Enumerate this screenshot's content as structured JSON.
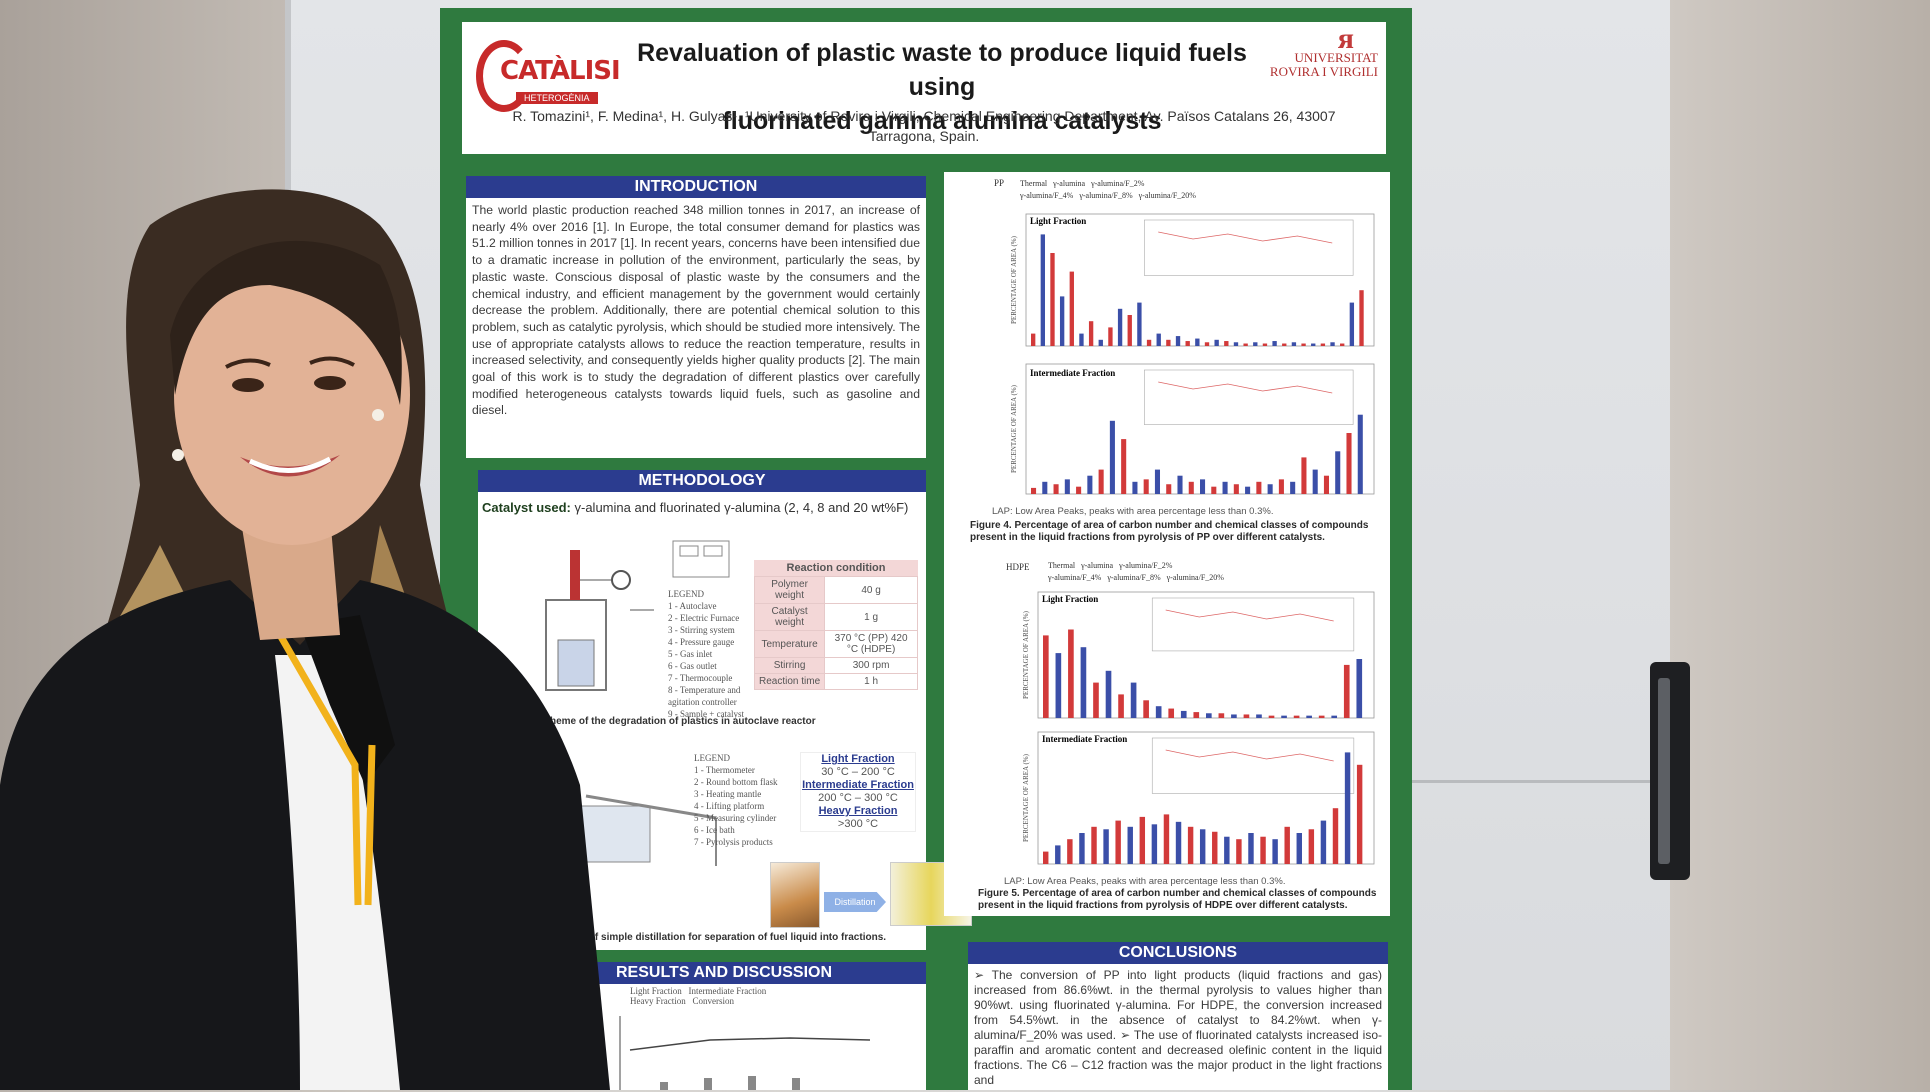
{
  "poster": {
    "title_line1": "Revaluation of plastic waste to produce liquid fuels using",
    "title_line2": "fluorinated gamma alumina catalysts",
    "authors_line1": "R. Tomazini¹, F. Medina¹, H. Gulyas¹. ¹University of Rovira i Virgili, Chemical Engineering Department, Av. Països Catalans 26, 43007",
    "authors_line2": "Tarragona, Spain.",
    "logo_left_word": "CATÀLISI",
    "logo_left_sub": "HETEROGÈNIA",
    "logo_right_line1": "UNIVERSITAT",
    "logo_right_line2": "ROVIRA I VIRGILI",
    "introduction": {
      "heading": "INTRODUCTION",
      "text": "The world plastic production reached 348 million tonnes in 2017, an increase of nearly 4% over 2016 [1]. In Europe, the total consumer demand for plastics was 51.2 million tonnes in 2017 [1]. In recent years, concerns have been intensified due to a dramatic increase in pollution of the environment, particularly the seas, by plastic waste. Conscious disposal of plastic waste by the consumers and the chemical industry, and efficient management by the government would certainly decrease the problem. Additionally, there are potential chemical solution to this problem, such as catalytic pyrolysis, which should be studied more intensively. The use of appropriate catalysts allows to reduce the reaction temperature, results in increased selectivity, and consequently yields higher quality products [2]. The main goal of this work is to study the degradation of different plastics over carefully modified heterogeneous catalysts towards liquid fuels, such as gasoline and diesel."
    },
    "methodology": {
      "heading": "METHODOLOGY",
      "catalyst_label": "Catalyst used:",
      "catalyst_text": "γ-alumina and fluorinated γ-alumina (2, 4, 8 and 20 wt%F)",
      "reaction_title": "Reaction condition",
      "reaction_rows": [
        {
          "k": "Polymer weight",
          "v": "40 g"
        },
        {
          "k": "Catalyst weight",
          "v": "1 g"
        },
        {
          "k": "Temperature",
          "v": "370 °C (PP) 420 °C (HDPE)"
        },
        {
          "k": "Stirring",
          "v": "300 rpm"
        },
        {
          "k": "Reaction time",
          "v": "1 h"
        }
      ],
      "legend1_title": "LEGEND",
      "legend1": [
        "1 - Autoclave",
        "2 - Electric Furnace",
        "3 - Stirring system",
        "4 - Pressure gauge",
        "5 - Gas inlet",
        "6 - Gas outlet",
        "7 - Thermocouple",
        "8 - Temperature and",
        "agitation controller",
        "9 - Sample + catalyst"
      ],
      "caption1": "heme of the degradation of plastics in autoclave reactor",
      "legend2_title": "LEGEND",
      "legend2": [
        "1 - Thermometer",
        "2 - Round bottom flask",
        "3 - Heating mantle",
        "4 - Lifting platform",
        "5 - Measuring cylinder",
        "6 - Ice bath",
        "7 - Pyrolysis products"
      ],
      "fractions": [
        {
          "t": "Light Fraction",
          "r": "30 °C – 200 °C"
        },
        {
          "t": "Intermediate Fraction",
          "r": "200 °C – 300 °C"
        },
        {
          "t": "Heavy Fraction",
          "r": ">300 °C"
        }
      ],
      "distillation_label": "Distillation",
      "caption2": "eme of simple distillation for separation of fuel liquid into fractions."
    },
    "results": {
      "heading": "RESULTS AND DISCUSSION",
      "legend": [
        "Light Fraction",
        "Intermediate Fraction",
        "Heavy Fraction",
        "Conversion"
      ]
    },
    "conclusions": {
      "heading": "CONCLUSIONS",
      "text": "➢ The conversion of PP into light products (liquid fractions and gas) increased from 86.6%wt. in the thermal pyrolysis to values higher than 90%wt. using fluorinated γ-alumina. For HDPE, the conversion increased from 54.5%wt. in the absence of catalyst to 84.2%wt. when γ-alumina/F_20% was used. ➢ The use of fluorinated catalysts increased iso-paraffin and aromatic content and decreased olefinic content in the liquid fractions. The C6 – C12 fraction was the major product in the light fractions and"
    },
    "figures": {
      "pp_label": "PP",
      "hdpe_label": "HDPE",
      "legend": [
        "Thermal",
        "γ-alumina",
        "γ-alumina/F_2%",
        "γ-alumina/F_4%",
        "γ-alumina/F_8%",
        "γ-alumina/F_20%"
      ],
      "light_fraction": "Light Fraction",
      "intermediate_fraction": "Intermediate Fraction",
      "ylabel": "PERCENTAGE OF AREA (%)",
      "lap_note": "LAP: Low Area Peaks, peaks with area percentage less than 0.3%.",
      "fig4_caption_1": "Figure 4. Percentage of area of carbon number and chemical classes of compounds",
      "fig4_caption_2": "present in the liquid fractions from pyrolysis of PP over different catalysts.",
      "fig5_caption_1": "Figure 5. Percentage of area of carbon number and chemical classes of compounds",
      "fig5_caption_2": "present in the liquid fractions from pyrolysis of HDPE over different catalysts."
    }
  },
  "colors": {
    "poster_green": "#2f7a3f",
    "section_blue": "#2b3c8f",
    "bar_red": "#d23a3a",
    "bar_blue": "#3b4fa8",
    "jacket": "#16171a",
    "lanyard": "#f2b21b"
  }
}
